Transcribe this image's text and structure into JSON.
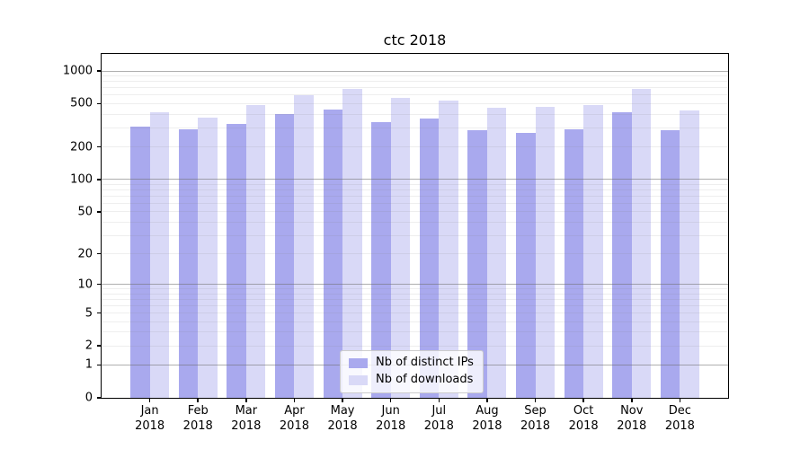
{
  "title": "ctc 2018",
  "colors": {
    "bar_distinct_ips": "#a9a9ee",
    "bar_downloads": "#d9d9f7",
    "spine": "#000000",
    "grid_major": "#b0b0b0",
    "grid_minor": "#e9e9e9"
  },
  "y_axis": {
    "ticks": [
      0,
      1,
      2,
      5,
      10,
      20,
      50,
      100,
      200,
      500,
      1000
    ],
    "major_gridlines": [
      1,
      10,
      100,
      1000
    ],
    "scale": "log1p",
    "top_value": 1435
  },
  "x_axis": {
    "months": [
      "Jan",
      "Feb",
      "Mar",
      "Apr",
      "May",
      "Jun",
      "Jul",
      "Aug",
      "Sep",
      "Oct",
      "Nov",
      "Dec"
    ],
    "year": "2018"
  },
  "legend": {
    "items": [
      {
        "label": "Nb of distinct IPs",
        "color_key": "bar_distinct_ips"
      },
      {
        "label": "Nb of downloads",
        "color_key": "bar_downloads"
      }
    ]
  },
  "chart_data": {
    "type": "bar",
    "title": "ctc 2018",
    "categories": [
      "Jan 2018",
      "Feb 2018",
      "Mar 2018",
      "Apr 2018",
      "May 2018",
      "Jun 2018",
      "Jul 2018",
      "Aug 2018",
      "Sep 2018",
      "Oct 2018",
      "Nov 2018",
      "Dec 2018"
    ],
    "series": [
      {
        "name": "Nb of distinct IPs",
        "values": [
          310,
          290,
          325,
          400,
          445,
          340,
          365,
          285,
          270,
          290,
          415,
          285
        ]
      },
      {
        "name": "Nb of downloads",
        "values": [
          420,
          375,
          485,
          600,
          685,
          565,
          530,
          460,
          465,
          485,
          685,
          435
        ]
      }
    ],
    "yscale": "log1p",
    "yticks": [
      0,
      1,
      2,
      5,
      10,
      20,
      50,
      100,
      200,
      500,
      1000
    ],
    "ylim": [
      0,
      1435
    ],
    "grid": "on",
    "legend_position": "lower center"
  }
}
